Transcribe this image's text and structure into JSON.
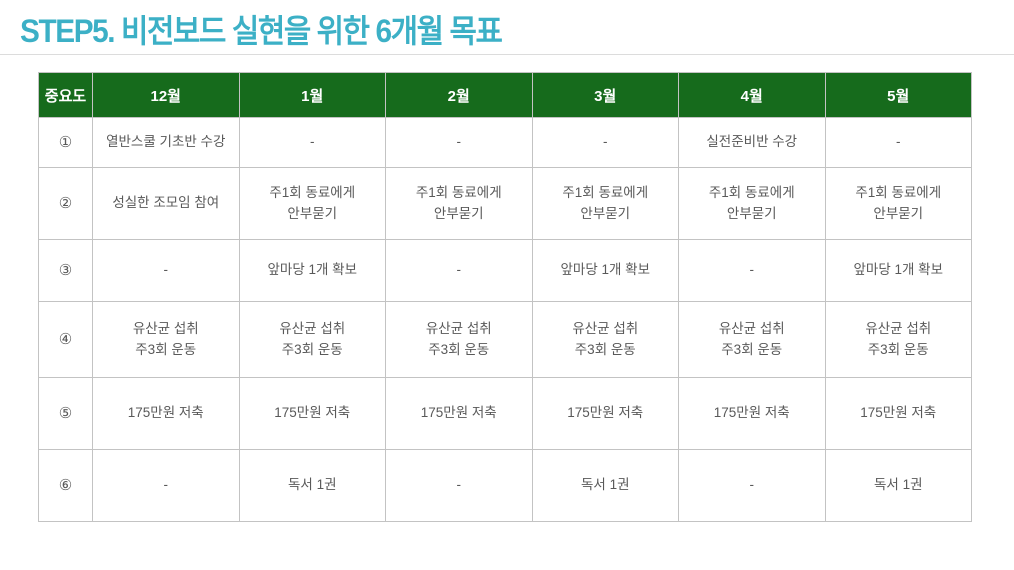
{
  "title": "STEP5. 비전보드 실현을 위한 6개월 목표",
  "colors": {
    "title_color": "#3cb0c6",
    "header_bg": "#166b1c",
    "header_text": "#ffffff",
    "body_text": "#595959",
    "border": "#c3c3c3"
  },
  "table": {
    "columns": [
      "중요도",
      "12월",
      "1월",
      "2월",
      "3월",
      "4월",
      "5월"
    ],
    "rows": [
      {
        "num": "①",
        "cells": [
          "열반스쿨 기초반 수강",
          "-",
          "-",
          "-",
          "실전준비반 수강",
          "-"
        ]
      },
      {
        "num": "②",
        "cells": [
          "성실한 조모임 참여",
          "주1회 동료에게\n안부묻기",
          "주1회 동료에게\n안부묻기",
          "주1회 동료에게\n안부묻기",
          "주1회 동료에게\n안부묻기",
          "주1회 동료에게\n안부묻기"
        ]
      },
      {
        "num": "③",
        "cells": [
          "-",
          "앞마당 1개 확보",
          "-",
          "앞마당 1개 확보",
          "-",
          "앞마당 1개 확보"
        ]
      },
      {
        "num": "④",
        "cells": [
          "유산균 섭취\n주3회 운동",
          "유산균 섭취\n주3회 운동",
          "유산균 섭취\n주3회 운동",
          "유산균 섭취\n주3회 운동",
          "유산균 섭취\n주3회 운동",
          "유산균 섭취\n주3회 운동"
        ]
      },
      {
        "num": "⑤",
        "cells": [
          "175만원 저축",
          "175만원 저축",
          "175만원 저축",
          "175만원 저축",
          "175만원 저축",
          "175만원 저축"
        ]
      },
      {
        "num": "⑥",
        "cells": [
          "-",
          "독서 1권",
          "-",
          "독서 1권",
          "-",
          "독서 1권"
        ]
      }
    ]
  }
}
